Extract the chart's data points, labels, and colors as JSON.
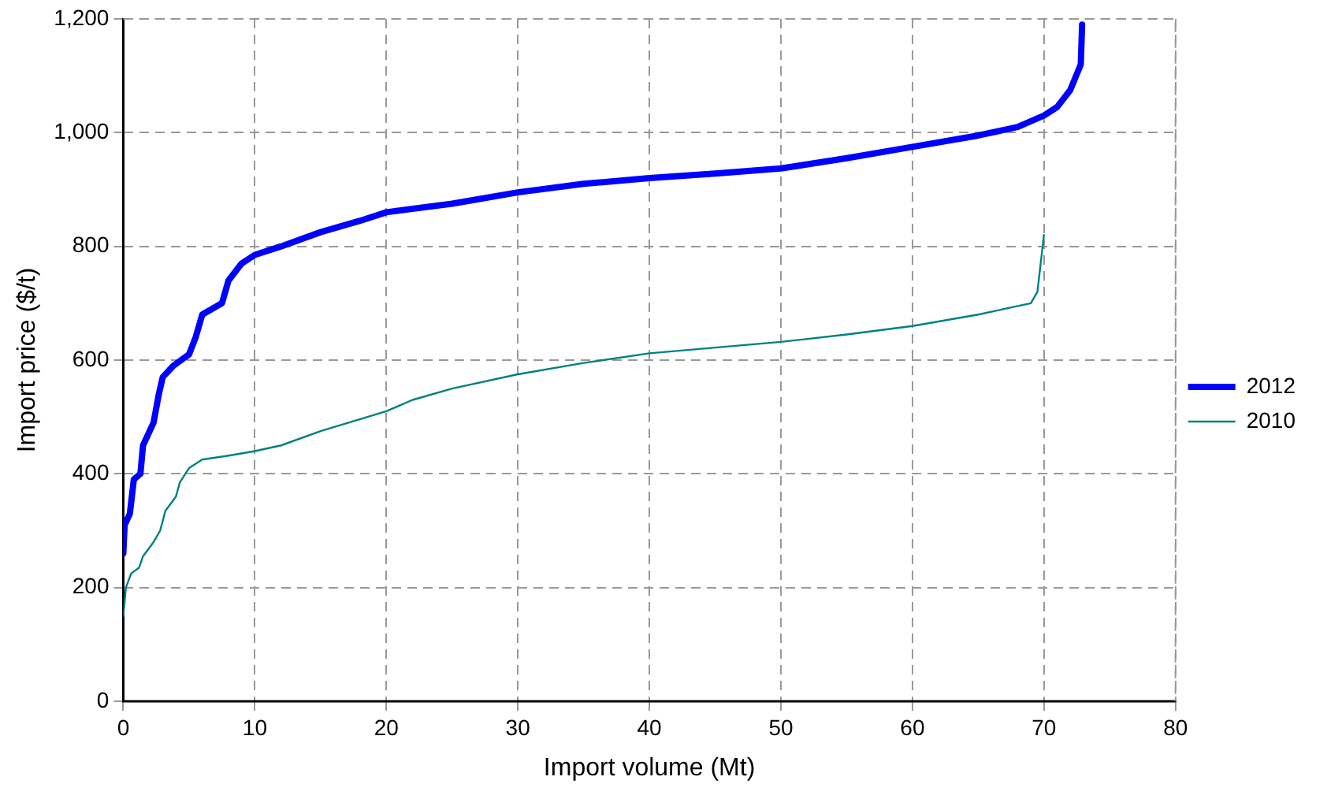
{
  "chart_data": {
    "type": "line",
    "xlabel": "Import volume (Mt)",
    "ylabel": "Import price ($/t)",
    "xlim": [
      0,
      80
    ],
    "xticks": [
      0,
      10,
      20,
      30,
      40,
      50,
      60,
      70,
      80
    ],
    "ylim": [
      0,
      1200
    ],
    "yticks": [
      0,
      200,
      400,
      600,
      800,
      {
        "value": 1000,
        "label": "1,000"
      },
      {
        "value": 1200,
        "label": "1,200"
      }
    ],
    "grid": true,
    "legend": "right",
    "marker": "none",
    "series": [
      {
        "name": "2012",
        "color": "#0000ff",
        "x": [
          0,
          0.1,
          0.5,
          0.8,
          1.3,
          1.5,
          2.3,
          2.7,
          3,
          3.8,
          5,
          5.5,
          6,
          7.5,
          8,
          9,
          10,
          12,
          15,
          18,
          20,
          25,
          30,
          35,
          40,
          45,
          50,
          55,
          60,
          65,
          68,
          70,
          71,
          72,
          72.8,
          72.9
        ],
        "values": [
          260,
          310,
          330,
          390,
          400,
          450,
          490,
          540,
          570,
          590,
          610,
          640,
          680,
          700,
          740,
          770,
          785,
          800,
          825,
          845,
          860,
          875,
          895,
          910,
          920,
          928,
          937,
          955,
          975,
          995,
          1010,
          1030,
          1045,
          1075,
          1120,
          1190
        ]
      },
      {
        "name": "2010",
        "color": "#008080",
        "x": [
          0,
          0.2,
          0.6,
          1.2,
          1.5,
          2.3,
          2.8,
          3.2,
          4,
          4.3,
          5,
          6,
          8,
          10,
          12,
          15,
          20,
          22,
          25,
          30,
          35,
          40,
          45,
          50,
          55,
          60,
          65,
          68,
          69,
          69.5,
          69.7,
          70
        ],
        "values": [
          150,
          200,
          225,
          235,
          255,
          280,
          300,
          335,
          360,
          385,
          410,
          425,
          432,
          440,
          450,
          475,
          510,
          530,
          550,
          575,
          595,
          612,
          622,
          632,
          645,
          660,
          680,
          695,
          700,
          720,
          760,
          820
        ]
      }
    ]
  }
}
